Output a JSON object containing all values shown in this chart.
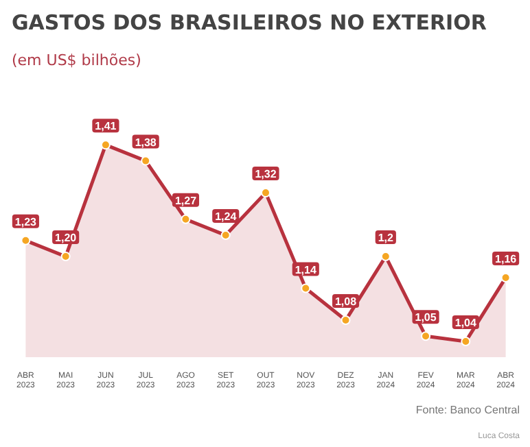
{
  "chart_data": {
    "type": "area",
    "title": "GASTOS DOS BRASILEIROS NO EXTERIOR",
    "subtitle": "(em US$ bilhões)",
    "categories": [
      "ABR\n2023",
      "MAI\n2023",
      "JUN\n2023",
      "JUL\n2023",
      "AGO\n2023",
      "SET\n2023",
      "OUT\n2023",
      "NOV\n2023",
      "DEZ\n2023",
      "JAN\n2024",
      "FEV\n2024",
      "MAR\n2024",
      "ABR\n2024"
    ],
    "series": [
      {
        "color": "#b8323e",
        "values": [
          1.23,
          1.2,
          1.41,
          1.38,
          1.27,
          1.24,
          1.32,
          1.14,
          1.08,
          1.2,
          1.05,
          1.04,
          1.16
        ],
        "value_labels": [
          "1,23",
          "1,20",
          "1,41",
          "1,38",
          "1,27",
          "1,24",
          "1,32",
          "1,14",
          "1,08",
          "1,2",
          "1,05",
          "1,04",
          "1,16"
        ]
      }
    ],
    "marker": "circle",
    "grid": false,
    "annotations": [
      "Fonte: Banco Central",
      "Luca Costa"
    ]
  }
}
